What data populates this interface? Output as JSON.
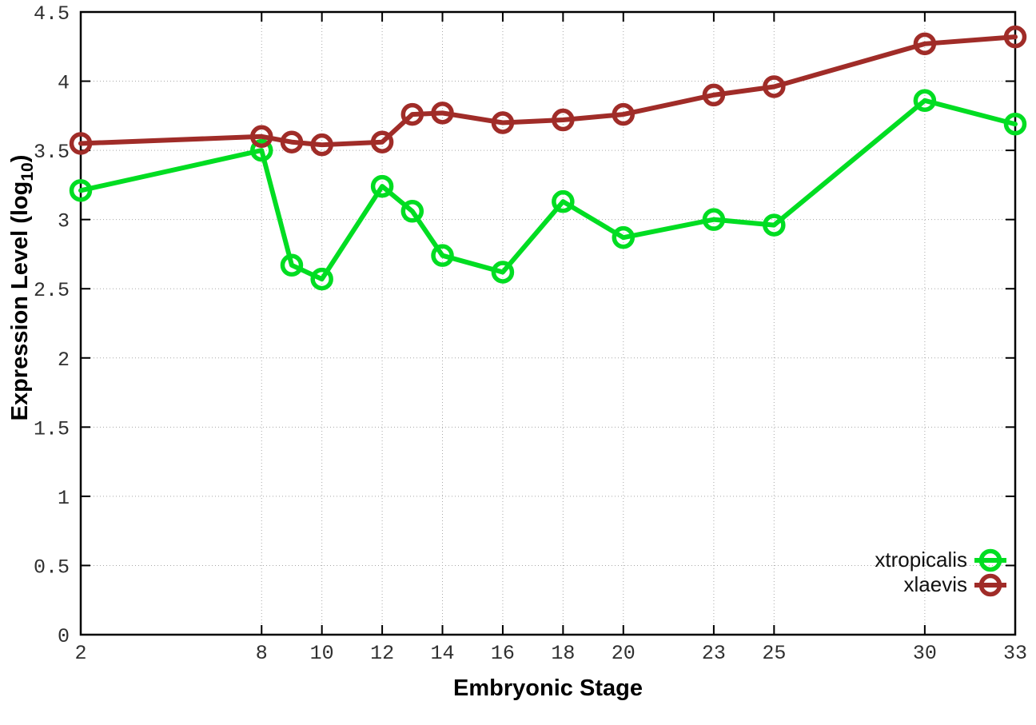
{
  "chart_data": {
    "type": "line",
    "title": "",
    "xlabel": "Embryonic Stage",
    "ylabel": "Expression Level (log10)",
    "ylabel_parts": {
      "main": "Expression Level (log",
      "sub": "10",
      "close": ")"
    },
    "xlim": [
      2,
      33
    ],
    "ylim": [
      0,
      4.5
    ],
    "grid": true,
    "legend_position": "bottom-right",
    "x": [
      2,
      8,
      9,
      10,
      12,
      13,
      14,
      16,
      18,
      20,
      23,
      25,
      30,
      33
    ],
    "xtick_values": [
      2,
      8,
      10,
      12,
      14,
      16,
      18,
      20,
      23,
      25,
      30,
      33
    ],
    "xtick_labels": [
      "2",
      "8",
      "10",
      "12",
      "14",
      "16",
      "18",
      "20",
      "23",
      "25",
      "30",
      "33"
    ],
    "ytick_values": [
      0,
      0.5,
      1,
      1.5,
      2,
      2.5,
      3,
      3.5,
      4,
      4.5
    ],
    "ytick_labels": [
      "0",
      "0.5",
      "1",
      "1.5",
      "2",
      "2.5",
      "3",
      "3.5",
      "4",
      "4.5"
    ],
    "series": [
      {
        "name": "xtropicalis",
        "color": "#00dd22",
        "values": [
          3.21,
          3.5,
          2.67,
          2.57,
          3.24,
          3.06,
          2.74,
          2.62,
          3.13,
          2.87,
          3.0,
          2.96,
          3.86,
          3.69
        ]
      },
      {
        "name": "xlaevis",
        "color": "#a02c28",
        "values": [
          3.55,
          3.6,
          3.56,
          3.54,
          3.56,
          3.76,
          3.77,
          3.7,
          3.72,
          3.76,
          3.9,
          3.96,
          4.27,
          4.32
        ]
      }
    ],
    "colors": {
      "grid": "#a8a8a8",
      "border": "#000000",
      "tick_text": "#303030",
      "background": "#ffffff"
    }
  }
}
